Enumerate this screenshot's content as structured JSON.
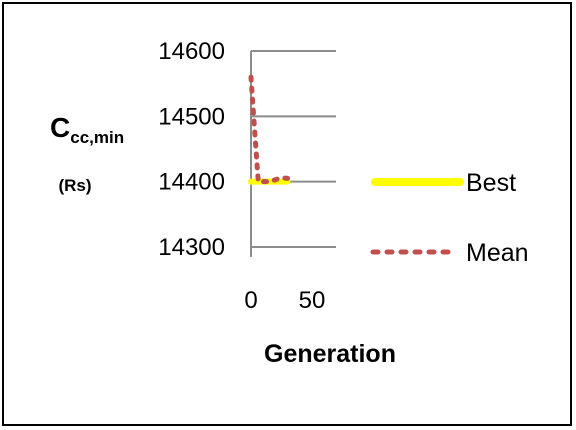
{
  "chart_data": {
    "type": "line",
    "title": "",
    "ylabel_main": "C",
    "ylabel_sub": "cc,min",
    "ylabel_unit": "(Rs)",
    "xlabel": "Generation",
    "xlim": [
      0,
      50
    ],
    "ylim": [
      14300,
      14600
    ],
    "xticks": [
      0,
      50
    ],
    "yticks": [
      14600,
      14500,
      14400,
      14300
    ],
    "grid": "horizontal",
    "legend_position": "right",
    "series": [
      {
        "name": "Best",
        "color": "#ffff00",
        "style": "solid",
        "x": [
          0,
          5,
          10,
          15,
          20,
          25,
          30
        ],
        "y": [
          14400,
          14400,
          14400,
          14400,
          14400,
          14400,
          14400
        ]
      },
      {
        "name": "Mean",
        "color": "#c0504d",
        "style": "dotted",
        "x": [
          0,
          1,
          2,
          3,
          4,
          5,
          6,
          8,
          10,
          15,
          20,
          25,
          30
        ],
        "y": [
          14560,
          14532,
          14505,
          14478,
          14451,
          14425,
          14400,
          14400,
          14400,
          14400,
          14403,
          14406,
          14405
        ]
      }
    ]
  }
}
